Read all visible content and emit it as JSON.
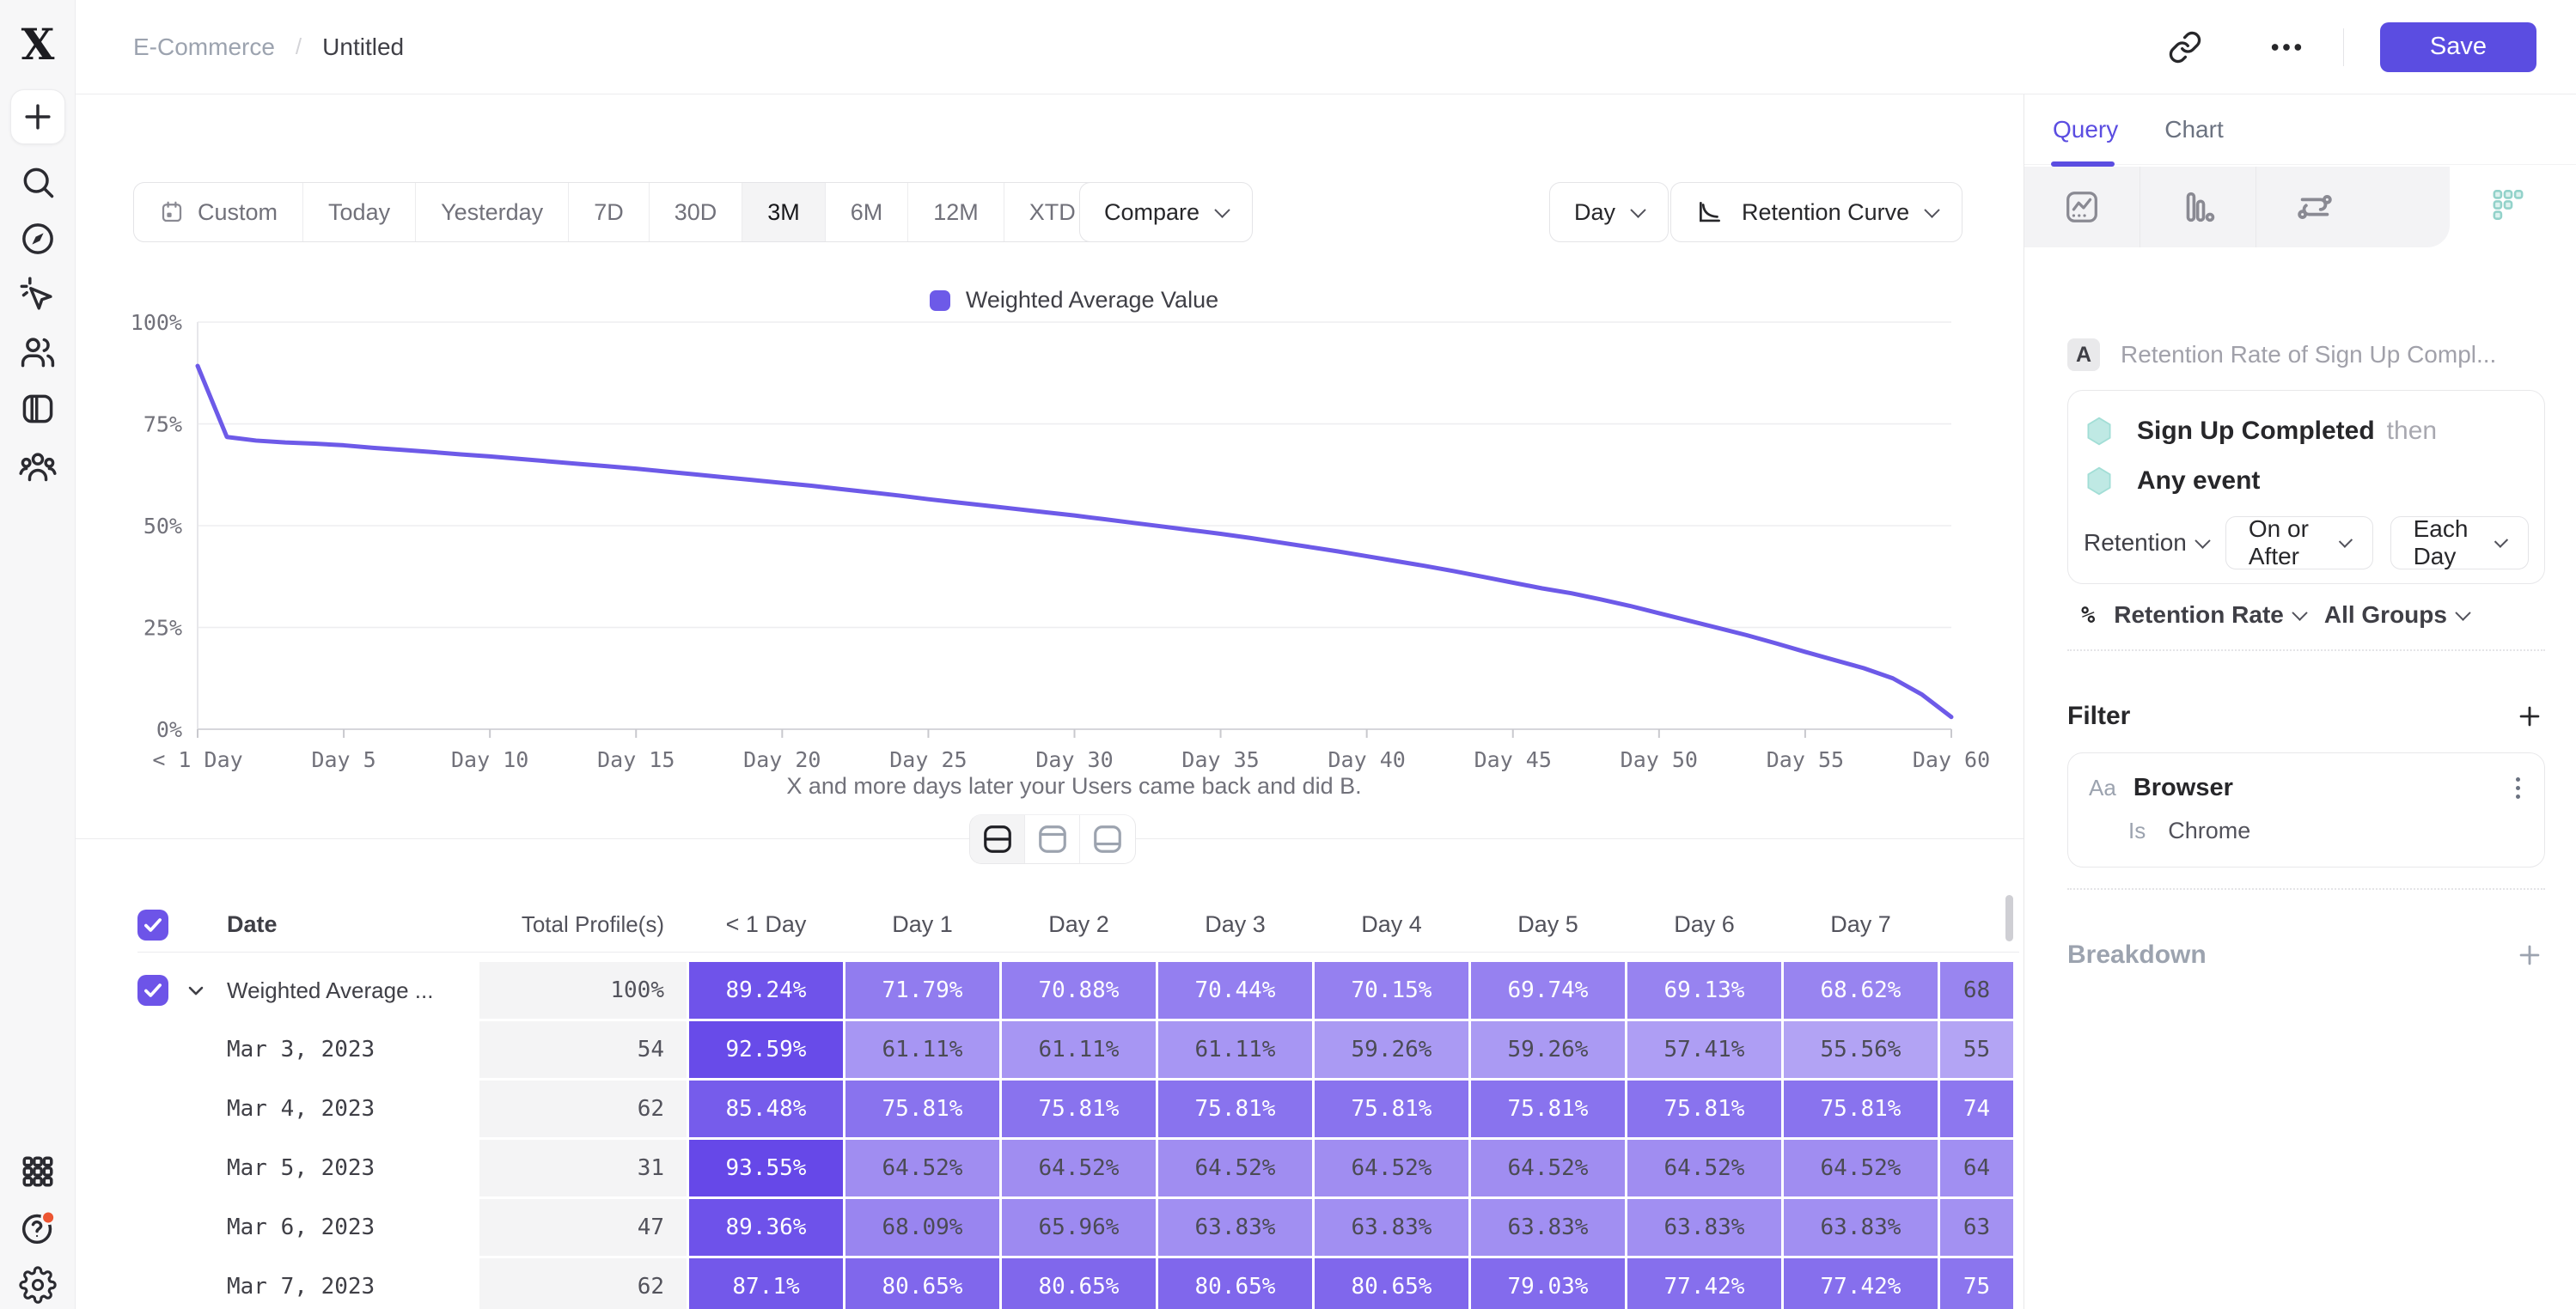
{
  "app": {
    "breadcrumb": [
      "E-Commerce",
      "Untitled"
    ],
    "save_label": "Save"
  },
  "colors": {
    "accent": "#5b4de1",
    "line": "#6d5ae8",
    "teal": "#bfe9e4",
    "notification": "#ec5532",
    "cell_light_rgb": [
      189,
      176,
      246
    ],
    "cell_dark_rgb": [
      99,
      69,
      232
    ],
    "cell_text_dark": "#4b4b55"
  },
  "toolbar": {
    "date_ranges": [
      "Custom",
      "Today",
      "Yesterday",
      "7D",
      "30D",
      "3M",
      "6M",
      "12M",
      "XTD"
    ],
    "active_range": "3M",
    "compare_label": "Compare",
    "granularity_label": "Day",
    "chart_type_label": "Retention Curve"
  },
  "chart": {
    "legend": "Weighted Average Value",
    "caption": "X and more days later your Users came back and did B."
  },
  "chart_data": {
    "type": "line",
    "title": "Retention Curve",
    "legend_position": "top",
    "xlabel": "X and more days later your Users came back and did B.",
    "ylabel": "",
    "ylim": [
      0,
      100
    ],
    "y_ticks": [
      0,
      25,
      50,
      75,
      100
    ],
    "y_tick_labels": [
      "0%",
      "25%",
      "50%",
      "75%",
      "100%"
    ],
    "x_range_days": [
      0,
      60
    ],
    "x_tick_days": [
      0,
      5,
      10,
      15,
      20,
      25,
      30,
      35,
      40,
      45,
      50,
      55,
      60
    ],
    "x_tick_labels": [
      "< 1 Day",
      "Day 5",
      "Day 10",
      "Day 15",
      "Day 20",
      "Day 25",
      "Day 30",
      "Day 35",
      "Day 40",
      "Day 45",
      "Day 50",
      "Day 55",
      "Day 60"
    ],
    "grid": true,
    "series": [
      {
        "name": "Weighted Average Value",
        "color": "#6d5ae8",
        "values": [
          89.24,
          71.79,
          70.9,
          70.44,
          70.15,
          69.74,
          69.13,
          68.62,
          68.1,
          67.5,
          67.0,
          66.4,
          65.8,
          65.2,
          64.6,
          64.0,
          63.3,
          62.6,
          61.9,
          61.2,
          60.5,
          59.8,
          59.0,
          58.2,
          57.4,
          56.5,
          55.7,
          54.9,
          54.1,
          53.3,
          52.5,
          51.6,
          50.7,
          49.8,
          48.9,
          48.0,
          47.0,
          45.9,
          44.8,
          43.7,
          42.5,
          41.3,
          40.1,
          38.8,
          37.4,
          36.0,
          34.6,
          33.4,
          31.9,
          30.3,
          28.5,
          26.7,
          24.9,
          23.1,
          21.1,
          19.0,
          17.0,
          15.0,
          12.5,
          8.5,
          3.0
        ]
      }
    ]
  },
  "table": {
    "headers": {
      "date": "Date",
      "total": "Total Profile(s)",
      "days": [
        "< 1 Day",
        "Day 1",
        "Day 2",
        "Day 3",
        "Day 4",
        "Day 5",
        "Day 6",
        "Day 7",
        ""
      ]
    },
    "rows": [
      {
        "label": "Weighted Average ...",
        "is_date": false,
        "selected": true,
        "expandable": true,
        "total": "100%",
        "cells": [
          "89.24%",
          "71.79%",
          "70.88%",
          "70.44%",
          "70.15%",
          "69.74%",
          "69.13%",
          "68.62%",
          "68"
        ]
      },
      {
        "label": "Mar 3, 2023",
        "is_date": true,
        "selected": false,
        "expandable": false,
        "total": "54",
        "cells": [
          "92.59%",
          "61.11%",
          "61.11%",
          "61.11%",
          "59.26%",
          "59.26%",
          "57.41%",
          "55.56%",
          "55"
        ]
      },
      {
        "label": "Mar 4, 2023",
        "is_date": true,
        "selected": false,
        "expandable": false,
        "total": "62",
        "cells": [
          "85.48%",
          "75.81%",
          "75.81%",
          "75.81%",
          "75.81%",
          "75.81%",
          "75.81%",
          "75.81%",
          "74"
        ]
      },
      {
        "label": "Mar 5, 2023",
        "is_date": true,
        "selected": false,
        "expandable": false,
        "total": "31",
        "cells": [
          "93.55%",
          "64.52%",
          "64.52%",
          "64.52%",
          "64.52%",
          "64.52%",
          "64.52%",
          "64.52%",
          "64"
        ]
      },
      {
        "label": "Mar 6, 2023",
        "is_date": true,
        "selected": false,
        "expandable": false,
        "total": "47",
        "cells": [
          "89.36%",
          "68.09%",
          "65.96%",
          "63.83%",
          "63.83%",
          "63.83%",
          "63.83%",
          "63.83%",
          "63"
        ]
      },
      {
        "label": "Mar 7, 2023",
        "is_date": true,
        "selected": false,
        "expandable": false,
        "total": "62",
        "cells": [
          "87.1%",
          "80.65%",
          "80.65%",
          "80.65%",
          "80.65%",
          "79.03%",
          "77.42%",
          "77.42%",
          "75"
        ]
      }
    ]
  },
  "panel": {
    "tabs": {
      "query": "Query",
      "chart": "Chart"
    },
    "active_tab": "Query",
    "view_tab_icons": [
      "insights-chart-icon",
      "bar-chart-icon",
      "flows-icon",
      "retention-grid-icon"
    ],
    "query": {
      "badge": "A",
      "title": "Retention Rate of Sign Up Compl...",
      "event1": "Sign Up Completed",
      "event1_suffix": "then",
      "event2": "Any event",
      "retention_dropdown": "Retention",
      "on_or_after_dropdown": "On or After",
      "each_day_dropdown": "Each Day",
      "measure_prefix": "%",
      "measure": "Retention Rate",
      "groups": "All Groups"
    },
    "filter": {
      "heading": "Filter",
      "field_type": "Aa",
      "field": "Browser",
      "operator": "Is",
      "value": "Chrome"
    },
    "breakdown": {
      "heading": "Breakdown"
    }
  },
  "sidebar_icons": [
    "plus",
    "search",
    "compass",
    "cursor-sparkle",
    "users",
    "panel",
    "community",
    "apps-grid",
    "help",
    "settings"
  ]
}
